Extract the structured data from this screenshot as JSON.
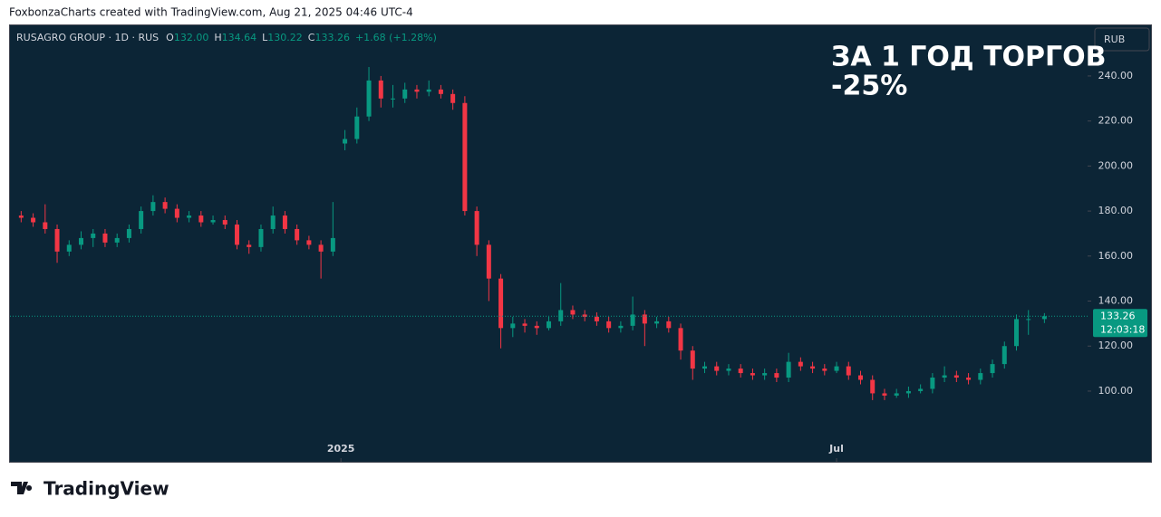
{
  "header": "FoxbonzaCharts created with TradingView.com, Aug 21, 2025 04:46 UTC-4",
  "footer": {
    "logo": "TradingView"
  },
  "chart_data": {
    "type": "candlestick",
    "legend": {
      "symbol": "RUSAGRO GROUP · 1D · RUS",
      "ohlc": [
        {
          "label": "O",
          "value": "132.00"
        },
        {
          "label": "H",
          "value": "134.64"
        },
        {
          "label": "L",
          "value": "130.22"
        },
        {
          "label": "C",
          "value": "133.26"
        }
      ],
      "change": "+1.68 (+1.28%)"
    },
    "annotation": [
      "ЗА 1 ГОД ТОРГОВ",
      "-25%"
    ],
    "currency": "RUB",
    "last_price": {
      "value": 133.26,
      "label": "133.26",
      "timer": "12:03:18"
    },
    "up_color": "#089981",
    "down_color": "#f23645",
    "x": [
      -80,
      -77,
      -74,
      -71,
      -68,
      -65,
      -62,
      -59,
      -56,
      -53,
      -50,
      -47,
      -44,
      -41,
      -38,
      -35,
      -32,
      -29,
      -26,
      -23,
      -20,
      -17,
      -14,
      -11,
      -8,
      -5,
      -2,
      1,
      4,
      7,
      10,
      13,
      16,
      19,
      22,
      25,
      28,
      31,
      34,
      37,
      40,
      43,
      46,
      49,
      52,
      55,
      58,
      61,
      64,
      67,
      70,
      73,
      76,
      79,
      82,
      85,
      88,
      91,
      94,
      97,
      100,
      103,
      106,
      109,
      112,
      115,
      118,
      121,
      124,
      127,
      130,
      133,
      136,
      139,
      142,
      145,
      148,
      151,
      154,
      157,
      160,
      163,
      166,
      169,
      172,
      176
    ],
    "open": [
      178,
      177,
      175,
      172,
      162,
      165,
      168,
      170,
      166,
      168,
      172,
      180,
      184,
      181,
      177,
      178,
      175,
      176,
      174,
      165,
      164,
      172,
      178,
      172,
      167,
      165,
      162,
      210,
      212,
      222,
      238,
      230,
      230,
      234,
      233,
      234,
      232,
      228,
      180,
      165,
      150,
      128,
      130,
      129,
      128,
      131,
      136,
      134,
      133,
      131,
      128,
      129,
      134,
      130,
      131,
      128,
      118,
      110,
      111,
      109,
      110,
      108,
      107,
      108,
      106,
      113,
      111,
      110,
      109,
      111,
      107,
      105,
      99,
      98,
      99,
      100,
      101,
      106,
      107,
      106,
      105,
      108,
      112,
      120,
      132,
      132
    ],
    "high": [
      180,
      179,
      183,
      174,
      167,
      171,
      172,
      172,
      170,
      174,
      182,
      187,
      186,
      183,
      180,
      180,
      178,
      178,
      176,
      167,
      174,
      182,
      180,
      174,
      169,
      167,
      184,
      216,
      226,
      244,
      240,
      236,
      237,
      236,
      238,
      236,
      234,
      231,
      182,
      167,
      152,
      133,
      132,
      131,
      133,
      148,
      138,
      136,
      135,
      133,
      131,
      142,
      136,
      133,
      133,
      130,
      120,
      113,
      113,
      112,
      112,
      110,
      110,
      110,
      117,
      115,
      113,
      112,
      113,
      113,
      109,
      107,
      101,
      101,
      102,
      103,
      108,
      111,
      109,
      108,
      110,
      114,
      122,
      134,
      136,
      134.64
    ],
    "low": [
      175,
      173,
      170,
      157,
      160,
      163,
      164,
      164,
      164,
      166,
      170,
      178,
      179,
      175,
      175,
      173,
      174,
      172,
      163,
      161,
      162,
      170,
      170,
      165,
      163,
      150,
      160,
      207,
      210,
      220,
      226,
      226,
      228,
      230,
      231,
      230,
      225,
      178,
      160,
      140,
      119,
      124,
      126,
      125,
      127,
      129,
      132,
      131,
      129,
      126,
      126,
      127,
      120,
      128,
      126,
      114,
      105,
      108,
      107,
      107,
      106,
      105,
      105,
      104,
      104,
      109,
      108,
      107,
      108,
      105,
      103,
      96,
      96,
      97,
      97,
      99,
      99,
      104,
      104,
      103,
      103,
      106,
      110,
      118,
      125,
      130.22
    ],
    "close": [
      177,
      175,
      172,
      162,
      165,
      168,
      170,
      166,
      168,
      172,
      180,
      184,
      181,
      177,
      178,
      175,
      176,
      174,
      165,
      164,
      172,
      178,
      172,
      167,
      165,
      162,
      168,
      212,
      222,
      238,
      230,
      230,
      234,
      233,
      234,
      232,
      228,
      180,
      165,
      150,
      128,
      130,
      129,
      128,
      131,
      136,
      134,
      133,
      131,
      128,
      129,
      134,
      130,
      131,
      128,
      118,
      110,
      111,
      109,
      110,
      108,
      107,
      108,
      106,
      113,
      111,
      110,
      109,
      111,
      107,
      105,
      99,
      98,
      99,
      100,
      101,
      106,
      107,
      106,
      105,
      108,
      112,
      120,
      132,
      132,
      133.26
    ],
    "xlim": [
      -82.8,
      186.8
    ],
    "xticks": [
      {
        "value": 0,
        "label": "2025"
      },
      {
        "value": 124,
        "label": "Jul"
      }
    ],
    "ylim": [
      68.6,
      262.5
    ],
    "yticks": [
      {
        "value": 100,
        "label": "100.00"
      },
      {
        "value": 120,
        "label": "120.00"
      },
      {
        "value": 140,
        "label": "140.00"
      },
      {
        "value": 160,
        "label": "160.00"
      },
      {
        "value": 180,
        "label": "180.00"
      },
      {
        "value": 200,
        "label": "200.00"
      },
      {
        "value": 220,
        "label": "220.00"
      },
      {
        "value": 240,
        "label": "240.00"
      }
    ]
  }
}
